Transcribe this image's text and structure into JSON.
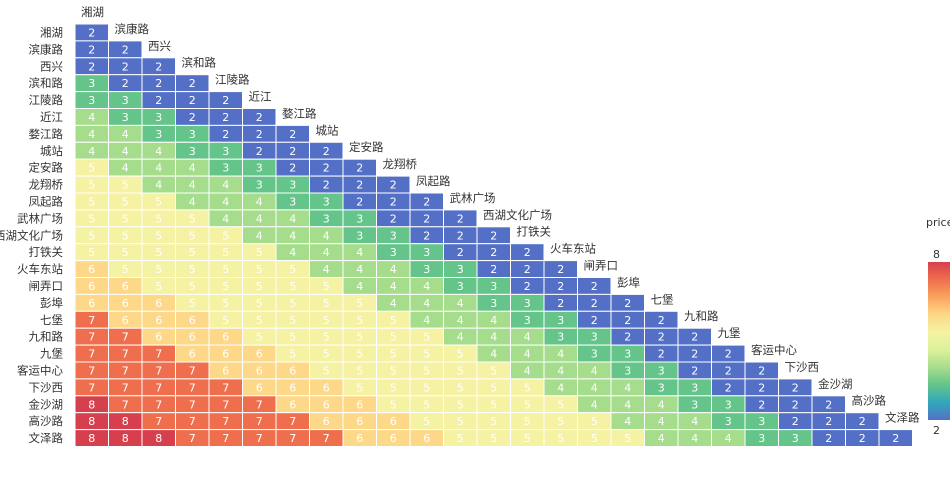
{
  "chart_data": {
    "type": "heatmap",
    "stations": [
      "湘湖",
      "滨康路",
      "西兴",
      "滨和路",
      "江陵路",
      "近江",
      "婺江路",
      "城站",
      "定安路",
      "龙翔桥",
      "凤起路",
      "武林广场",
      "西湖文化广场",
      "打铁关",
      "火车东站",
      "闸弄口",
      "彭埠",
      "七堡",
      "九和路",
      "九堡",
      "客运中心",
      "下沙西",
      "金沙湖",
      "高沙路",
      "文泽路"
    ],
    "rows": [
      [
        2
      ],
      [
        2,
        2
      ],
      [
        2,
        2,
        2
      ],
      [
        3,
        2,
        2,
        2
      ],
      [
        3,
        3,
        2,
        2,
        2
      ],
      [
        4,
        3,
        3,
        2,
        2,
        2
      ],
      [
        4,
        4,
        3,
        3,
        2,
        2,
        2
      ],
      [
        4,
        4,
        4,
        3,
        3,
        2,
        2,
        2
      ],
      [
        5,
        4,
        4,
        4,
        3,
        3,
        2,
        2,
        2
      ],
      [
        5,
        5,
        4,
        4,
        4,
        3,
        3,
        2,
        2,
        2
      ],
      [
        5,
        5,
        5,
        4,
        4,
        4,
        3,
        3,
        2,
        2,
        2
      ],
      [
        5,
        5,
        5,
        5,
        4,
        4,
        4,
        3,
        3,
        2,
        2,
        2
      ],
      [
        5,
        5,
        5,
        5,
        5,
        4,
        4,
        4,
        3,
        3,
        2,
        2,
        2
      ],
      [
        5,
        5,
        5,
        5,
        5,
        5,
        4,
        4,
        4,
        3,
        3,
        2,
        2,
        2
      ],
      [
        6,
        5,
        5,
        5,
        5,
        5,
        5,
        4,
        4,
        4,
        3,
        3,
        2,
        2,
        2
      ],
      [
        6,
        6,
        5,
        5,
        5,
        5,
        5,
        5,
        4,
        4,
        4,
        3,
        3,
        2,
        2,
        2
      ],
      [
        6,
        6,
        6,
        5,
        5,
        5,
        5,
        5,
        5,
        4,
        4,
        4,
        3,
        3,
        2,
        2,
        2
      ],
      [
        7,
        6,
        6,
        6,
        5,
        5,
        5,
        5,
        5,
        5,
        4,
        4,
        4,
        3,
        3,
        2,
        2,
        2
      ],
      [
        7,
        7,
        6,
        6,
        6,
        5,
        5,
        5,
        5,
        5,
        5,
        4,
        4,
        4,
        3,
        3,
        2,
        2,
        2
      ],
      [
        7,
        7,
        7,
        6,
        6,
        6,
        5,
        5,
        5,
        5,
        5,
        5,
        4,
        4,
        4,
        3,
        3,
        2,
        2,
        2
      ],
      [
        7,
        7,
        7,
        7,
        6,
        6,
        6,
        5,
        5,
        5,
        5,
        5,
        5,
        4,
        4,
        4,
        3,
        3,
        2,
        2,
        2
      ],
      [
        7,
        7,
        7,
        7,
        7,
        6,
        6,
        6,
        5,
        5,
        5,
        5,
        5,
        5,
        4,
        4,
        4,
        3,
        3,
        2,
        2,
        2
      ],
      [
        8,
        7,
        7,
        7,
        7,
        7,
        6,
        6,
        6,
        5,
        5,
        5,
        5,
        5,
        5,
        4,
        4,
        4,
        3,
        3,
        2,
        2,
        2
      ],
      [
        8,
        8,
        7,
        7,
        7,
        7,
        7,
        6,
        6,
        6,
        5,
        5,
        5,
        5,
        5,
        5,
        4,
        4,
        4,
        3,
        3,
        2,
        2,
        2
      ],
      [
        8,
        8,
        8,
        7,
        7,
        7,
        7,
        7,
        6,
        6,
        6,
        5,
        5,
        5,
        5,
        5,
        5,
        4,
        4,
        4,
        3,
        3,
        2,
        2,
        2
      ]
    ],
    "legend": {
      "title": "price",
      "min": 2,
      "max": 8
    },
    "colorscale": [
      "#5470c6",
      "#31a7bb",
      "#64c48a",
      "#a6dd8c",
      "#dcf19a",
      "#f5f2a3",
      "#fdd888",
      "#f9a45e",
      "#ef6e4d",
      "#d6404e"
    ]
  }
}
